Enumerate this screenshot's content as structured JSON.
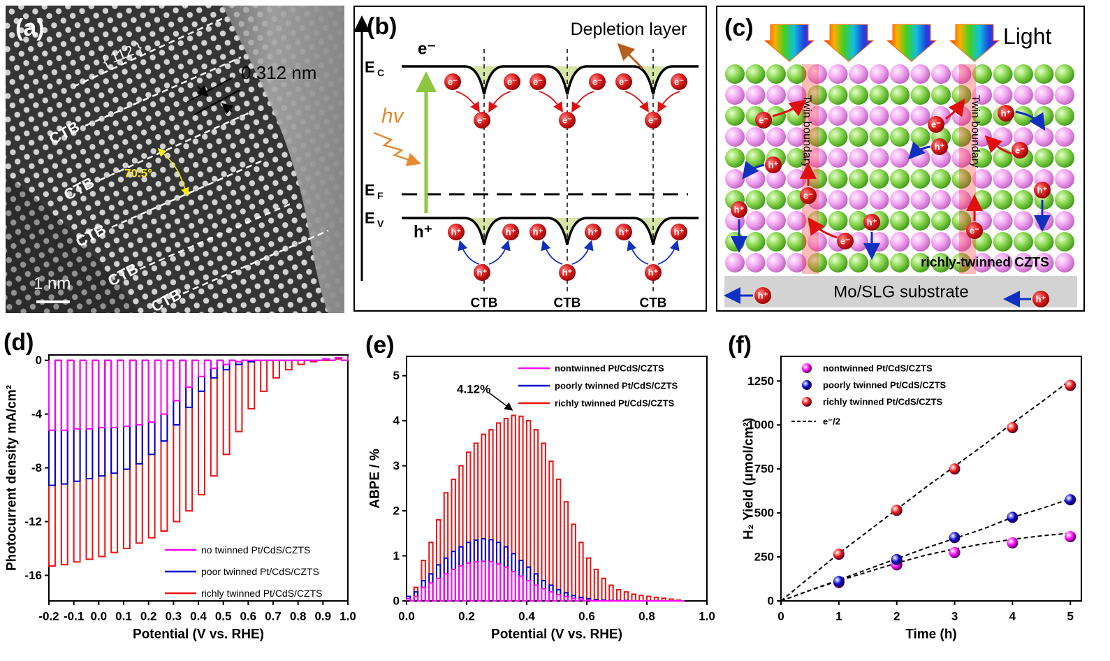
{
  "panel_a": {
    "label": "(a)",
    "plane": "{ 112 }",
    "spacing": "0.312 nm",
    "boundary": "CTB",
    "angle": "70.5°",
    "scale_bar": "1 nm"
  },
  "panel_b": {
    "label": "(b)",
    "depletion_layer": "Depletion layer",
    "electron": "e⁻",
    "hole": "h⁺",
    "energy": "E",
    "conduction": "C",
    "fermi": "F",
    "valence": "V",
    "photon": "hv",
    "boundary": "CTB"
  },
  "panel_c": {
    "label": "(c)",
    "light": "Light",
    "twin_boundary": "Twin boundary",
    "film": "richly-twinned CZTS",
    "substrate": "Mo/SLG substrate",
    "electron": "e⁻",
    "hole": "h⁺"
  },
  "chart_data": [
    {
      "panel_label": "(d)",
      "type": "line",
      "chopped": true,
      "xlabel": "Potential (V vs. RHE)",
      "ylabel": "Photocurrent density mA/cm²",
      "x": [
        -0.2,
        -0.15,
        -0.1,
        -0.05,
        0,
        0.05,
        0.1,
        0.15,
        0.2,
        0.25,
        0.3,
        0.35,
        0.4,
        0.45,
        0.5,
        0.55,
        0.6,
        0.65,
        0.7,
        0.75,
        0.8,
        0.85,
        0.9,
        0.95,
        1.0
      ],
      "series": [
        {
          "name": "no twinned Pt/CdS/CZTS",
          "color": "#ff00ff",
          "values": [
            -5.2,
            -5.2,
            -5.1,
            -5.1,
            -5.0,
            -5.0,
            -4.9,
            -4.8,
            -4.6,
            -4.0,
            -3.0,
            -2.0,
            -1.2,
            -0.6,
            -0.3,
            -0.1,
            0,
            0,
            0,
            0,
            0,
            0,
            0.1,
            0.2,
            0.3
          ]
        },
        {
          "name": "poor twinned Pt/CdS/CZTS",
          "color": "#0000cc",
          "values": [
            -9.3,
            -9.2,
            -9.0,
            -8.8,
            -8.6,
            -8.4,
            -8.1,
            -7.7,
            -7.0,
            -6.0,
            -4.8,
            -3.5,
            -2.3,
            -1.3,
            -0.7,
            -0.3,
            -0.1,
            0,
            0,
            0,
            0,
            0,
            0.1,
            0.2,
            0.3
          ]
        },
        {
          "name": "richly twinned Pt/CdS/CZTS",
          "color": "#ee1111",
          "values": [
            -15.3,
            -15.2,
            -15.0,
            -14.8,
            -14.6,
            -14.3,
            -14.0,
            -13.6,
            -13.2,
            -12.7,
            -12.0,
            -11.2,
            -10.0,
            -8.6,
            -7.0,
            -5.3,
            -3.6,
            -2.3,
            -1.3,
            -0.7,
            -0.3,
            -0.1,
            0,
            0.1,
            0.3
          ]
        }
      ],
      "xlim": [
        -0.2,
        1.0
      ],
      "ylim": [
        -17.9,
        0.4
      ],
      "xticks": [
        -0.2,
        -0.1,
        {
          "value": 0,
          "label": "0.0"
        },
        0.1,
        0.2,
        0.3,
        0.4,
        0.5,
        0.6,
        0.7,
        0.8,
        0.9,
        {
          "value": 1,
          "label": "1.0"
        }
      ],
      "yticks": [
        0,
        -4,
        -8,
        -12,
        -16
      ],
      "legend": "lower right"
    },
    {
      "panel_label": "(e)",
      "type": "line",
      "chopped": true,
      "xlabel": "Potential (V vs. RHE)",
      "ylabel": "ABPE / %",
      "annotation": "4.12%",
      "x": [
        0,
        0.025,
        0.05,
        0.075,
        0.1,
        0.125,
        0.15,
        0.175,
        0.2,
        0.225,
        0.25,
        0.275,
        0.3,
        0.325,
        0.35,
        0.375,
        0.4,
        0.425,
        0.45,
        0.475,
        0.5,
        0.525,
        0.55,
        0.575,
        0.6,
        0.625,
        0.65,
        0.675,
        0.7,
        0.725,
        0.75,
        0.775,
        0.8,
        0.825,
        0.85,
        0.875,
        0.9
      ],
      "series": [
        {
          "name": "nontwinned Pt/CdS/CZTS",
          "color": "#ff00ff",
          "values": [
            0.05,
            0.1,
            0.3,
            0.4,
            0.5,
            0.6,
            0.7,
            0.78,
            0.84,
            0.87,
            0.88,
            0.87,
            0.82,
            0.75,
            0.65,
            0.55,
            0.45,
            0.35,
            0.27,
            0.2,
            0.14,
            0.1,
            0.06,
            0.04,
            0.02,
            0,
            0,
            0,
            0,
            0,
            0,
            0,
            0,
            0,
            0,
            0,
            0
          ]
        },
        {
          "name": "poorly twinned Pt/CdS/CZTS",
          "color": "#0000cc",
          "values": [
            0.1,
            0.2,
            0.45,
            0.6,
            0.8,
            0.95,
            1.1,
            1.2,
            1.3,
            1.35,
            1.38,
            1.36,
            1.3,
            1.2,
            1.05,
            0.9,
            0.75,
            0.6,
            0.45,
            0.35,
            0.25,
            0.18,
            0.12,
            0.08,
            0.05,
            0.03,
            0.02,
            0.01,
            0.01,
            0.01,
            0,
            0,
            0,
            0,
            0,
            0,
            0
          ]
        },
        {
          "name": "richly twinned Pt/CdS/CZTS",
          "color": "#ee1111",
          "values": [
            0.1,
            0.3,
            0.9,
            1.3,
            1.8,
            2.4,
            2.7,
            3.0,
            3.3,
            3.5,
            3.7,
            3.8,
            3.95,
            4.05,
            4.12,
            4.1,
            4.0,
            3.8,
            3.5,
            3.1,
            2.7,
            2.2,
            1.7,
            1.3,
            0.95,
            0.7,
            0.5,
            0.35,
            0.25,
            0.2,
            0.15,
            0.12,
            0.1,
            0.08,
            0.06,
            0.04,
            0.02
          ]
        }
      ],
      "xlim": [
        0,
        1.0
      ],
      "ylim": [
        0,
        5.43
      ],
      "xticks": [
        {
          "value": 0,
          "label": "0.0"
        },
        0.2,
        0.4,
        0.6,
        0.8,
        {
          "value": 1,
          "label": "1.0"
        }
      ],
      "yticks": [
        0,
        1,
        2,
        3,
        4,
        5
      ],
      "legend": "upper right"
    },
    {
      "panel_label": "(f)",
      "type": "scatter",
      "xlabel": "Time (h)",
      "ylabel": "H₂ Yield (μmol/cm²)",
      "x": [
        1,
        2,
        3,
        4,
        5
      ],
      "series": [
        {
          "name": "nontwinned Pt/CdS/CZTS",
          "color": "#ff00ff",
          "values": [
            105,
            205,
            275,
            330,
            365
          ]
        },
        {
          "name": "poorly twinned Pt/CdS/CZTS",
          "color": "#0000dd",
          "values": [
            110,
            235,
            360,
            475,
            575
          ]
        },
        {
          "name": "richly twinned Pt/CdS/CZTS",
          "color": "#ee1111",
          "values": [
            265,
            515,
            750,
            985,
            1225
          ]
        }
      ],
      "fit": {
        "name": "e⁻/2",
        "color": "#000000",
        "x": [
          0,
          0.5,
          1,
          1.5,
          2,
          2.5,
          3,
          3.5,
          4,
          4.5,
          5
        ],
        "curves": [
          [
            0,
            60,
            115,
            165,
            215,
            260,
            295,
            325,
            350,
            370,
            385
          ],
          [
            0,
            60,
            120,
            180,
            240,
            300,
            355,
            410,
            475,
            525,
            580
          ],
          [
            0,
            135,
            270,
            395,
            520,
            645,
            765,
            885,
            1010,
            1130,
            1255
          ]
        ]
      },
      "xlim": [
        0,
        5.19
      ],
      "ylim": [
        0,
        1390
      ],
      "xticks": [
        0,
        1,
        2,
        3,
        4,
        5
      ],
      "yticks": [
        0,
        250,
        500,
        750,
        1000,
        1250
      ],
      "legend": "upper left"
    }
  ]
}
